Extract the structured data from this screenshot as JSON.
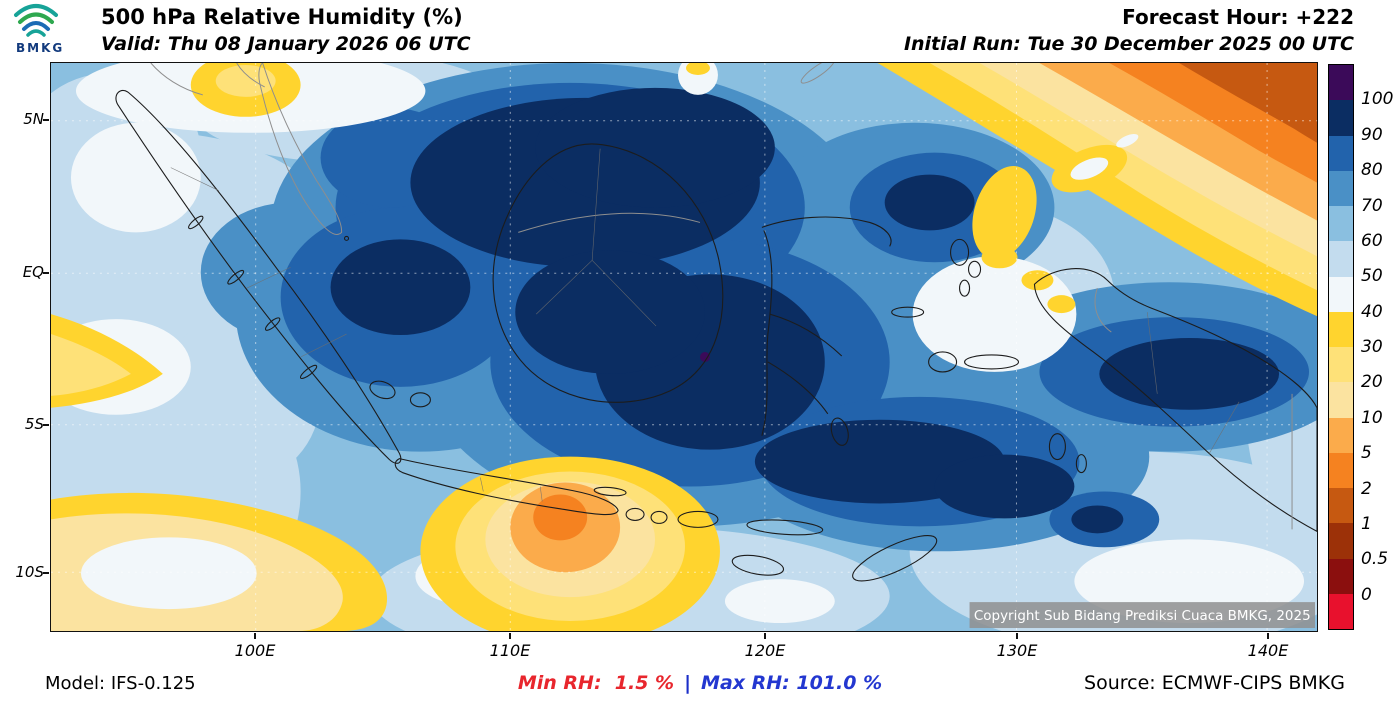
{
  "header": {
    "logo_text": "BMKG",
    "title": "500 hPa Relative Humidity (%)",
    "valid": "Valid: Thu 08 January 2026 06 UTC",
    "forecast_hour": "Forecast Hour: +222",
    "initial_run": "Initial Run: Tue 30 December 2025 00 UTC"
  },
  "map": {
    "x_axis_labels": [
      "100E",
      "110E",
      "120E",
      "130E",
      "140E"
    ],
    "y_axis_labels": [
      "5N",
      "EQ",
      "5S",
      "10S"
    ],
    "copyright": "Copyright Sub Bidang Prediksi Cuaca BMKG, 2025"
  },
  "colorbar": {
    "tick_labels": [
      "100",
      "90",
      "80",
      "70",
      "60",
      "50",
      "40",
      "30",
      "20",
      "10",
      "5",
      "2",
      "1",
      "0.5",
      "0"
    ],
    "segment_colors": [
      "#3b0a59",
      "#0b2d62",
      "#2263ac",
      "#4a90c6",
      "#8abfe0",
      "#c3dcee",
      "#f2f7fa",
      "#ffd42e",
      "#fee178",
      "#fbe3a0",
      "#fbab4b",
      "#f58220",
      "#c65911",
      "#9c3108",
      "#8b0f0e",
      "#e8112d"
    ]
  },
  "footer": {
    "model": "Model: IFS-0.125",
    "min_rh": "Min RH:  1.5 %",
    "min_color": "#e8262d",
    "separator": "|",
    "separator_color": "#1a2ec8",
    "max_rh": "Max RH: 101.0 %",
    "max_color": "#2337d0",
    "source": "Source: ECMWF-CIPS BMKG"
  },
  "chart_data": {
    "type": "heatmap",
    "title": "500 hPa Relative Humidity (%)",
    "valid_time": "Thu 08 January 2026 06 UTC",
    "initial_run": "Tue 30 December 2025 00 UTC",
    "forecast_hour": "+222",
    "x_ticks": [
      "100E",
      "110E",
      "120E",
      "130E",
      "140E"
    ],
    "y_ticks": [
      "5N",
      "EQ",
      "5S",
      "10S"
    ],
    "colorbar_levels": [
      100,
      90,
      80,
      70,
      60,
      50,
      40,
      30,
      20,
      10,
      5,
      2,
      1,
      0.5,
      0
    ],
    "min_rh_percent": 1.5,
    "max_rh_percent": 101.0,
    "model": "IFS-0.125",
    "source": "ECMWF-CIPS BMKG",
    "legend_position": "right"
  }
}
